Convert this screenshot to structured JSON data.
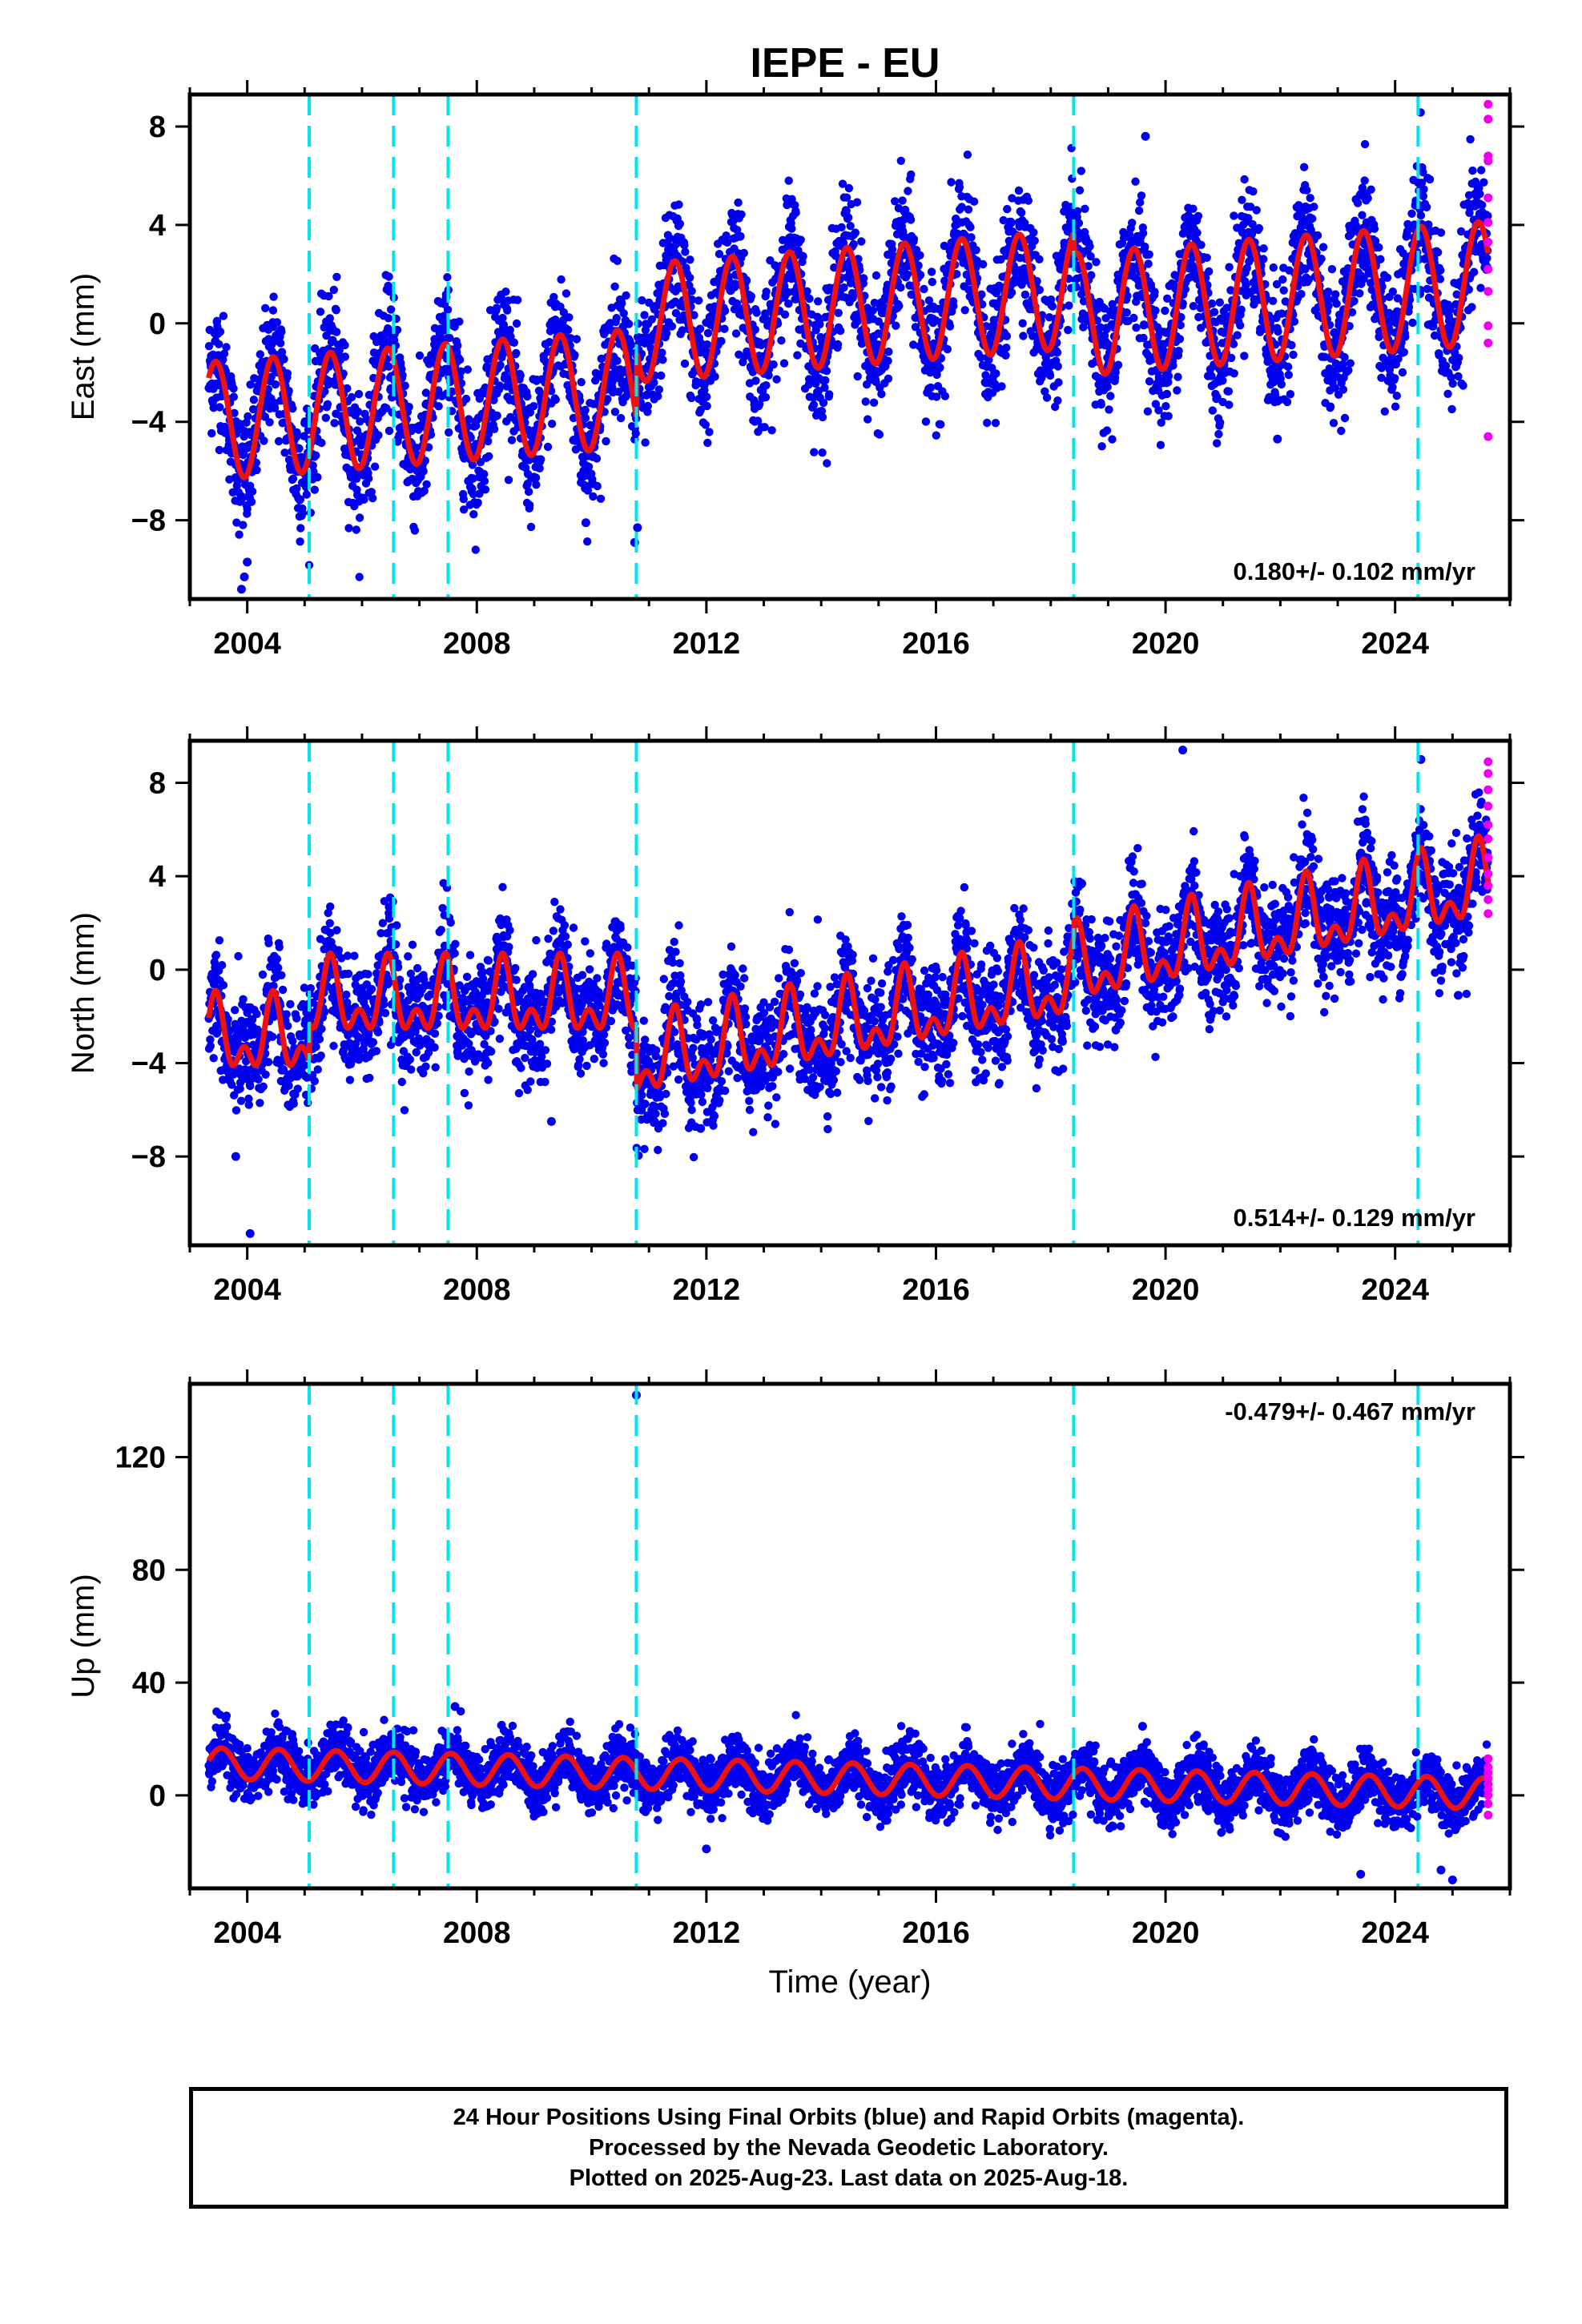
{
  "title": "IEPE - EU",
  "colors": {
    "final_orbits": "#0000ee",
    "rapid_orbits": "#ee00ee",
    "model": "#ee1111",
    "equipment_change": "#00e5ee",
    "frame": "#000000"
  },
  "chart_data": [
    {
      "type": "scatter",
      "name": "east",
      "ylabel": "East (mm)",
      "xlabel": "",
      "xlim": [
        2003.0,
        2026.0
      ],
      "ylim": [
        -11.2,
        9.3
      ],
      "yticks": [
        -8,
        -4,
        0,
        4,
        8
      ],
      "yticklabels": [
        "−8",
        "−4",
        "0",
        "4",
        "8"
      ],
      "xticks": [
        2004,
        2008,
        2012,
        2016,
        2020,
        2024
      ],
      "xticklabels": [
        "2004",
        "2008",
        "2012",
        "2016",
        "2020",
        "2024"
      ],
      "rate_label": "0.180+/- 0.102 mm/yr",
      "rate_position": "bottom-right",
      "series_model": {
        "segments": [
          {
            "x": [
              2003.33,
              2010.78
            ],
            "offset": -3.3,
            "trend": 0.18,
            "annual_amp": 2.4,
            "semiannual_amp": 0.0,
            "trend_growth": 0.0
          },
          {
            "x": [
              2010.78,
              2018.4
            ],
            "offset": 0.7,
            "trend": 0.18,
            "annual_amp": 2.4,
            "semiannual_amp": 0.0,
            "trend_growth": 0.0
          },
          {
            "x": [
              2018.4,
              2025.62
            ],
            "offset": 1.0,
            "trend": 0.18,
            "annual_amp": 2.5,
            "semiannual_amp": 0.0,
            "trend_growth": 0.0
          }
        ],
        "annual_phase_year_of_peak": 0.45,
        "scatter_sigma": 1.3
      },
      "outliers": [
        [
          2003.9,
          -10.8
        ],
        [
          2003.95,
          -10.3
        ],
        [
          2004.0,
          -9.7
        ],
        [
          2009.9,
          -8.1
        ],
        [
          2010.75,
          -8.9
        ],
        [
          2010.8,
          -8.3
        ],
        [
          2019.65,
          7.6
        ],
        [
          2021.95,
          -4.7
        ]
      ],
      "rapid_points": [
        [
          2025.62,
          8.9
        ],
        [
          2025.62,
          8.3
        ],
        [
          2025.62,
          6.8
        ],
        [
          2025.62,
          6.6
        ],
        [
          2025.62,
          5.1
        ],
        [
          2025.62,
          4.1
        ],
        [
          2025.62,
          3.3
        ],
        [
          2025.62,
          2.2
        ],
        [
          2025.62,
          1.3
        ],
        [
          2025.62,
          -0.1
        ],
        [
          2025.62,
          -0.8
        ],
        [
          2025.62,
          -4.6
        ]
      ],
      "equipment_changes": [
        2005.08,
        2006.55,
        2007.5,
        2010.78,
        2018.4,
        2024.4
      ]
    },
    {
      "type": "scatter",
      "name": "north",
      "ylabel": "North (mm)",
      "xlabel": "",
      "xlim": [
        2003.0,
        2026.0
      ],
      "ylim": [
        -11.8,
        9.8
      ],
      "yticks": [
        -8,
        -4,
        0,
        4,
        8
      ],
      "yticklabels": [
        "−8",
        "−4",
        "0",
        "4",
        "8"
      ],
      "xticks": [
        2004,
        2008,
        2012,
        2016,
        2020,
        2024
      ],
      "xticklabels": [
        "2004",
        "2008",
        "2012",
        "2016",
        "2020",
        "2024"
      ],
      "rate_label": "0.514+/- 0.129 mm/yr",
      "rate_position": "bottom-right",
      "series_model": {
        "segments": [
          {
            "x": [
              2003.33,
              2005.08
            ],
            "offset": -3.0,
            "trend": 0.0,
            "annual_amp": 1.2,
            "semiannual_amp": 0.9,
            "trend_growth": 0.0
          },
          {
            "x": [
              2005.08,
              2010.78
            ],
            "offset": -1.4,
            "trend": 0.0,
            "annual_amp": 1.2,
            "semiannual_amp": 0.9,
            "trend_growth": 0.0
          },
          {
            "x": [
              2010.78,
              2018.4
            ],
            "offset": -2.3,
            "trend": 0.45,
            "annual_amp": 1.3,
            "semiannual_amp": 0.9,
            "trend_growth": 0.0
          },
          {
            "x": [
              2018.4,
              2025.62
            ],
            "offset": 1.8,
            "trend": 0.5,
            "annual_amp": 1.3,
            "semiannual_amp": 0.9,
            "trend_growth": 0.0
          }
        ],
        "annual_phase_year_of_peak": 0.45,
        "scatter_sigma": 1.2
      },
      "outliers": [
        [
          2003.8,
          -8.0
        ],
        [
          2004.05,
          -11.3
        ],
        [
          2009.3,
          -6.5
        ],
        [
          2011.9,
          -6.8
        ],
        [
          2020.3,
          9.4
        ],
        [
          2025.1,
          -1.1
        ],
        [
          2024.45,
          9.0
        ]
      ],
      "rapid_points": [
        [
          2025.62,
          8.9
        ],
        [
          2025.62,
          8.4
        ],
        [
          2025.62,
          7.7
        ],
        [
          2025.62,
          7.0
        ],
        [
          2025.62,
          6.2
        ],
        [
          2025.62,
          5.6
        ],
        [
          2025.62,
          4.8
        ],
        [
          2025.62,
          4.1
        ],
        [
          2025.62,
          3.6
        ],
        [
          2025.62,
          3.0
        ],
        [
          2025.62,
          2.4
        ]
      ],
      "equipment_changes": [
        2005.08,
        2006.55,
        2007.5,
        2010.78,
        2018.4,
        2024.4
      ]
    },
    {
      "type": "scatter",
      "name": "up",
      "ylabel": "Up (mm)",
      "xlabel": "Time (year)",
      "xlim": [
        2003.0,
        2026.0
      ],
      "ylim": [
        -33,
        146
      ],
      "yticks": [
        0,
        40,
        80,
        120
      ],
      "yticklabels": [
        "0",
        "40",
        "80",
        "120"
      ],
      "xticks": [
        2004,
        2008,
        2012,
        2016,
        2020,
        2024
      ],
      "xticklabels": [
        "2004",
        "2008",
        "2012",
        "2016",
        "2020",
        "2024"
      ],
      "rate_label": "-0.479+/- 0.467 mm/yr",
      "rate_position": "top-right",
      "series_model": {
        "segments": [
          {
            "x": [
              2003.33,
              2025.62
            ],
            "offset": 6.0,
            "trend": -0.48,
            "annual_amp": 5.5,
            "semiannual_amp": 0.0,
            "trend_growth": 0.0
          }
        ],
        "annual_phase_year_of_peak": 0.55,
        "scatter_sigma": 5.0
      },
      "outliers": [
        [
          2010.78,
          142.0
        ],
        [
          2007.62,
          31.5
        ],
        [
          2005.75,
          24.0
        ],
        [
          2019.6,
          24.5
        ],
        [
          2012.0,
          -19.0
        ],
        [
          2023.4,
          -28.0
        ],
        [
          2025.0,
          -30.0
        ],
        [
          2024.8,
          -26.5
        ]
      ],
      "rapid_points": [
        [
          2025.62,
          13.0
        ],
        [
          2025.62,
          10.0
        ],
        [
          2025.62,
          8.0
        ],
        [
          2025.62,
          6.0
        ],
        [
          2025.62,
          4.0
        ],
        [
          2025.62,
          2.0
        ],
        [
          2025.62,
          0.0
        ],
        [
          2025.62,
          -3.0
        ],
        [
          2025.62,
          -7.0
        ]
      ],
      "equipment_changes": [
        2005.08,
        2006.55,
        2007.5,
        2010.78,
        2018.4,
        2024.4
      ]
    }
  ],
  "footer": {
    "line1": "24 Hour Positions Using Final Orbits (blue) and Rapid Orbits (magenta).",
    "line2": "Processed by the Nevada Geodetic Laboratory.",
    "line3": "Plotted on 2025-Aug-23. Last data on 2025-Aug-18."
  }
}
